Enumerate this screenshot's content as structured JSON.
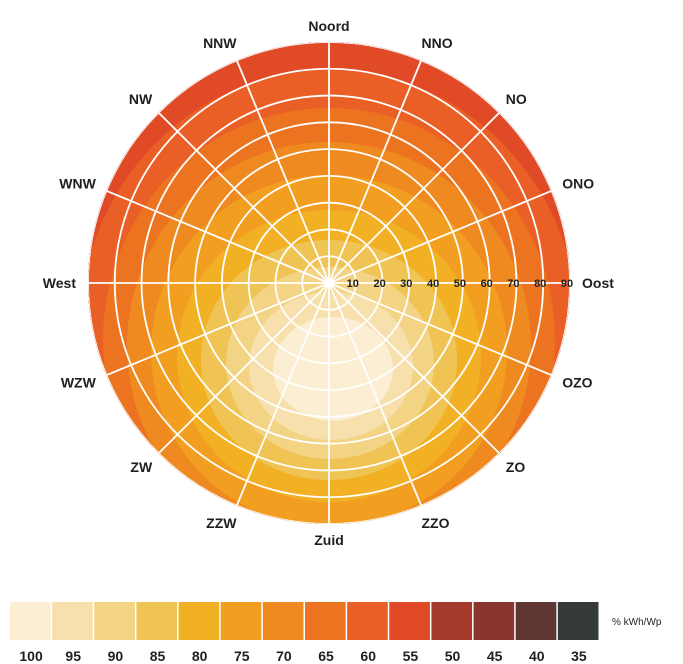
{
  "chart_data": {
    "type": "heatmap",
    "title": "",
    "directions": [
      "Noord",
      "NNO",
      "NO",
      "ONO",
      "Oost",
      "OZO",
      "ZO",
      "ZZO",
      "Zuid",
      "ZZW",
      "ZW",
      "WZW",
      "West",
      "WNW",
      "NW",
      "NNW"
    ],
    "tilt_rings": [
      "10",
      "20",
      "30",
      "40",
      "50",
      "60",
      "70",
      "80",
      "90"
    ],
    "legend_unit": "% kWh/Wp",
    "legend": [
      {
        "label": "100",
        "color": "#fbeed3"
      },
      {
        "label": "95",
        "color": "#f7e0ac"
      },
      {
        "label": "90",
        "color": "#f3d384"
      },
      {
        "label": "85",
        "color": "#f0c454"
      },
      {
        "label": "80",
        "color": "#f2b125"
      },
      {
        "label": "75",
        "color": "#f29e20"
      },
      {
        "label": "70",
        "color": "#ee8a20"
      },
      {
        "label": "65",
        "color": "#ec7421"
      },
      {
        "label": "60",
        "color": "#e95f25"
      },
      {
        "label": "55",
        "color": "#e14a27"
      },
      {
        "label": "50",
        "color": "#a53a2c"
      },
      {
        "label": "45",
        "color": "#8b352f"
      },
      {
        "label": "40",
        "color": "#5f3634"
      },
      {
        "label": "35",
        "color": "#333a37"
      }
    ],
    "zones": [
      {
        "value": 35,
        "color": "#333a37"
      },
      {
        "value": 40,
        "color": "#5f3634"
      },
      {
        "value": 45,
        "color": "#8b352f"
      },
      {
        "value": 50,
        "color": "#a53a2c"
      },
      {
        "value": 55,
        "color": "#e14a27"
      },
      {
        "value": 60,
        "color": "#e95f25"
      },
      {
        "value": 65,
        "color": "#ec7421"
      },
      {
        "value": 70,
        "color": "#ee8a20"
      },
      {
        "value": 75,
        "color": "#f29e20"
      },
      {
        "value": 80,
        "color": "#f2b125"
      },
      {
        "value": 85,
        "color": "#f0c454"
      },
      {
        "value": 90,
        "color": "#f3d384"
      },
      {
        "value": 95,
        "color": "#f7e0ac"
      },
      {
        "value": 100,
        "color": "#fbeed3"
      }
    ],
    "grid_color": "#ffffff"
  }
}
